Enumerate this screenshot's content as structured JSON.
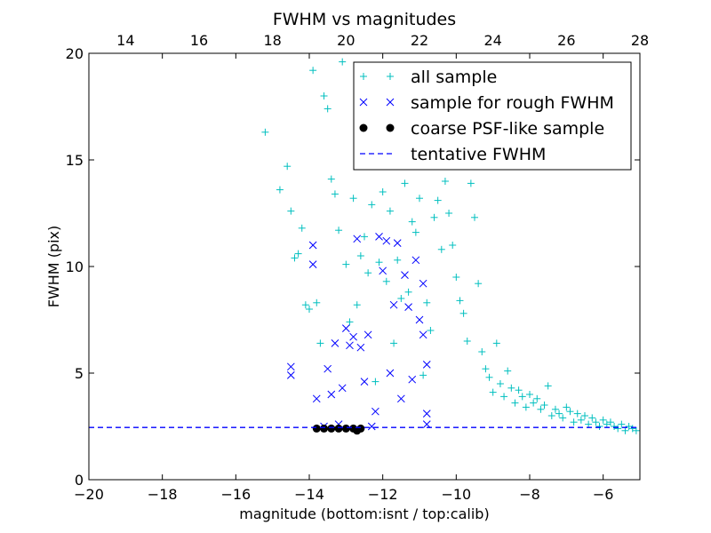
{
  "chart_data": {
    "type": "scatter",
    "title": "FWHM vs magnitudes",
    "xlabel": "magnitude (bottom:isnt / top:calib)",
    "ylabel": "FWHM (pix)",
    "xlim": [
      -20,
      -5
    ],
    "ylim": [
      0,
      20
    ],
    "x_ticks": [
      -20,
      -18,
      -16,
      -14,
      -12,
      -10,
      -8,
      -6
    ],
    "x_tick_labels": [
      "−20",
      "−18",
      "−16",
      "−14",
      "−12",
      "−10",
      "−8",
      "−6"
    ],
    "y_ticks": [
      0,
      5,
      10,
      15,
      20
    ],
    "y_tick_labels": [
      "0",
      "5",
      "10",
      "15",
      "20"
    ],
    "top_axis": {
      "xlim": [
        13,
        28
      ],
      "ticks": [
        14,
        16,
        18,
        20,
        22,
        24,
        26,
        28
      ],
      "tick_labels": [
        "14",
        "16",
        "18",
        "20",
        "22",
        "24",
        "26",
        "28"
      ]
    },
    "grid": false,
    "legend_position": "top-right",
    "colors": {
      "all_sample": "#00bfbf",
      "rough_fwhm": "#0000ff",
      "psf_like": "#000000",
      "tentative": "#0000ff"
    },
    "series": [
      {
        "name": "all sample",
        "marker": "+",
        "x": [
          -15.2,
          -14.8,
          -14.6,
          -14.5,
          -14.4,
          -14.3,
          -14.2,
          -14.1,
          -14.0,
          -13.9,
          -13.8,
          -13.7,
          -13.6,
          -13.5,
          -13.4,
          -13.3,
          -13.2,
          -13.1,
          -13.0,
          -12.9,
          -12.8,
          -12.7,
          -12.6,
          -12.5,
          -12.4,
          -12.3,
          -12.2,
          -12.1,
          -12.0,
          -11.9,
          -11.8,
          -11.7,
          -11.6,
          -11.5,
          -11.4,
          -11.3,
          -11.2,
          -11.1,
          -11.0,
          -10.9,
          -10.8,
          -10.7,
          -10.6,
          -10.5,
          -10.4,
          -10.3,
          -10.2,
          -10.1,
          -10.0,
          -9.9,
          -9.8,
          -9.7,
          -9.6,
          -9.5,
          -9.4,
          -9.3,
          -9.2,
          -9.1,
          -9.0,
          -8.9,
          -8.8,
          -8.7,
          -8.6,
          -8.5,
          -8.4,
          -8.3,
          -8.2,
          -8.1,
          -8.0,
          -7.9,
          -7.8,
          -7.7,
          -7.6,
          -7.5,
          -7.4,
          -7.3,
          -7.2,
          -7.1,
          -7.0,
          -6.9,
          -6.8,
          -6.7,
          -6.6,
          -6.5,
          -6.4,
          -6.3,
          -6.2,
          -6.1,
          -6.0,
          -5.9,
          -5.8,
          -5.7,
          -5.6,
          -5.5,
          -5.4,
          -5.3,
          -5.2,
          -5.1
        ],
        "y": [
          16.3,
          13.6,
          14.7,
          12.6,
          10.4,
          10.6,
          11.8,
          8.2,
          8.0,
          19.2,
          8.3,
          6.4,
          18.0,
          17.4,
          14.1,
          13.4,
          11.7,
          19.6,
          10.1,
          7.4,
          13.2,
          8.2,
          10.5,
          11.4,
          9.7,
          12.9,
          4.6,
          10.2,
          13.5,
          9.3,
          12.6,
          6.4,
          10.3,
          8.5,
          13.9,
          8.8,
          12.1,
          11.6,
          13.2,
          4.9,
          8.3,
          7.0,
          12.3,
          13.1,
          10.8,
          14.0,
          12.5,
          11.0,
          9.5,
          8.4,
          7.8,
          6.5,
          13.9,
          12.3,
          9.2,
          6.0,
          5.2,
          4.8,
          4.1,
          6.4,
          4.5,
          3.9,
          5.1,
          4.3,
          3.6,
          4.2,
          3.9,
          3.4,
          4.0,
          3.6,
          3.8,
          3.3,
          3.5,
          4.4,
          3.0,
          3.3,
          3.1,
          2.9,
          3.4,
          3.2,
          2.7,
          3.1,
          2.8,
          3.0,
          2.6,
          2.9,
          2.7,
          2.5,
          2.8,
          2.6,
          2.7,
          2.5,
          2.4,
          2.6,
          2.3,
          2.5,
          2.4,
          2.3
        ]
      },
      {
        "name": "sample for rough FWHM",
        "marker": "x",
        "x": [
          -14.5,
          -14.5,
          -13.9,
          -13.9,
          -13.8,
          -13.6,
          -13.5,
          -13.4,
          -13.3,
          -13.2,
          -13.1,
          -13.0,
          -12.9,
          -12.8,
          -12.7,
          -12.6,
          -12.5,
          -12.4,
          -12.3,
          -12.2,
          -12.1,
          -12.0,
          -11.9,
          -11.8,
          -11.7,
          -11.6,
          -11.5,
          -11.4,
          -11.3,
          -11.2,
          -11.1,
          -11.0,
          -10.9,
          -10.9,
          -10.8,
          -10.8,
          -10.8
        ],
        "y": [
          5.3,
          4.9,
          11.0,
          10.1,
          3.8,
          2.5,
          5.2,
          4.0,
          6.4,
          2.6,
          4.3,
          7.1,
          6.3,
          6.7,
          11.3,
          6.2,
          4.6,
          6.8,
          2.5,
          3.2,
          11.4,
          9.8,
          11.2,
          5.0,
          8.2,
          11.1,
          3.8,
          9.6,
          8.1,
          4.7,
          10.3,
          7.5,
          9.2,
          6.8,
          5.4,
          3.1,
          2.6
        ]
      },
      {
        "name": "coarse PSF-like sample",
        "marker": "o",
        "x": [
          -13.8,
          -13.6,
          -13.4,
          -13.2,
          -13.0,
          -12.8,
          -12.7,
          -12.6
        ],
        "y": [
          2.4,
          2.4,
          2.4,
          2.4,
          2.4,
          2.4,
          2.3,
          2.4
        ]
      }
    ],
    "tentative_fwhm": {
      "name": "tentative FWHM",
      "value": 2.45
    },
    "legend": [
      "all sample",
      "sample for rough FWHM",
      "coarse PSF-like sample",
      "tentative FWHM"
    ]
  }
}
